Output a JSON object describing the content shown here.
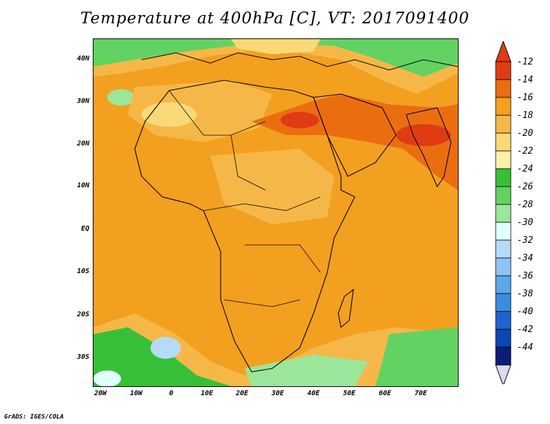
{
  "title": "Temperature at 400hPa [C], VT: 2017091400",
  "footer": "GrADS: IGES/COLA",
  "map": {
    "lon_labels": [
      "20W",
      "10W",
      "0",
      "10E",
      "20E",
      "30E",
      "40E",
      "50E",
      "60E",
      "70E"
    ],
    "lat_labels": [
      "40N",
      "30N",
      "20N",
      "10N",
      "EQ",
      "10S",
      "20S",
      "30S"
    ],
    "lon_range": [
      -22,
      80
    ],
    "lat_range": [
      -37,
      45
    ]
  },
  "colorbar": {
    "levels": [
      "-12",
      "-14",
      "-16",
      "-18",
      "-20",
      "-22",
      "-24",
      "-26",
      "-28",
      "-30",
      "-32",
      "-34",
      "-36",
      "-38",
      "-40",
      "-42",
      "-44"
    ],
    "colors": [
      "#e03c14",
      "#ea6e10",
      "#f3a020",
      "#f5b848",
      "#f9d878",
      "#fbf0a8",
      "#37c037",
      "#62d262",
      "#9ae69a",
      "#e0ffff",
      "#b4dcf8",
      "#8ec4f2",
      "#5aa8e8",
      "#3c8ce0",
      "#1e64d2",
      "#0a46b4",
      "#0a1e78"
    ],
    "top_arrow_color": "#e03c14",
    "bottom_arrow_color": "#ddd8f4"
  }
}
